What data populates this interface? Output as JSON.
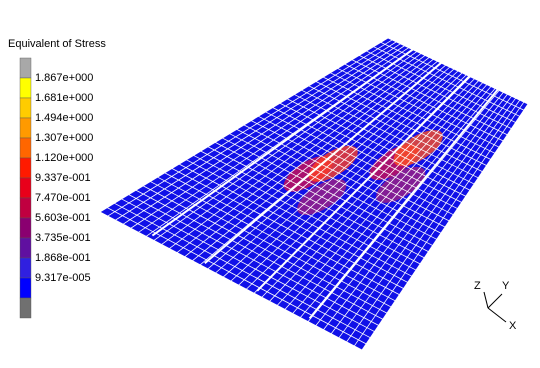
{
  "legend": {
    "title": "Equivalent of Stress",
    "labels": [
      "1.867e+000",
      "1.681e+000",
      "1.494e+000",
      "1.307e+000",
      "1.120e+000",
      "9.337e-001",
      "7.470e-001",
      "5.603e-001",
      "3.735e-001",
      "1.868e-001",
      "9.317e-005"
    ]
  },
  "triad": {
    "z": "Z",
    "y": "Y",
    "x": "X"
  }
}
